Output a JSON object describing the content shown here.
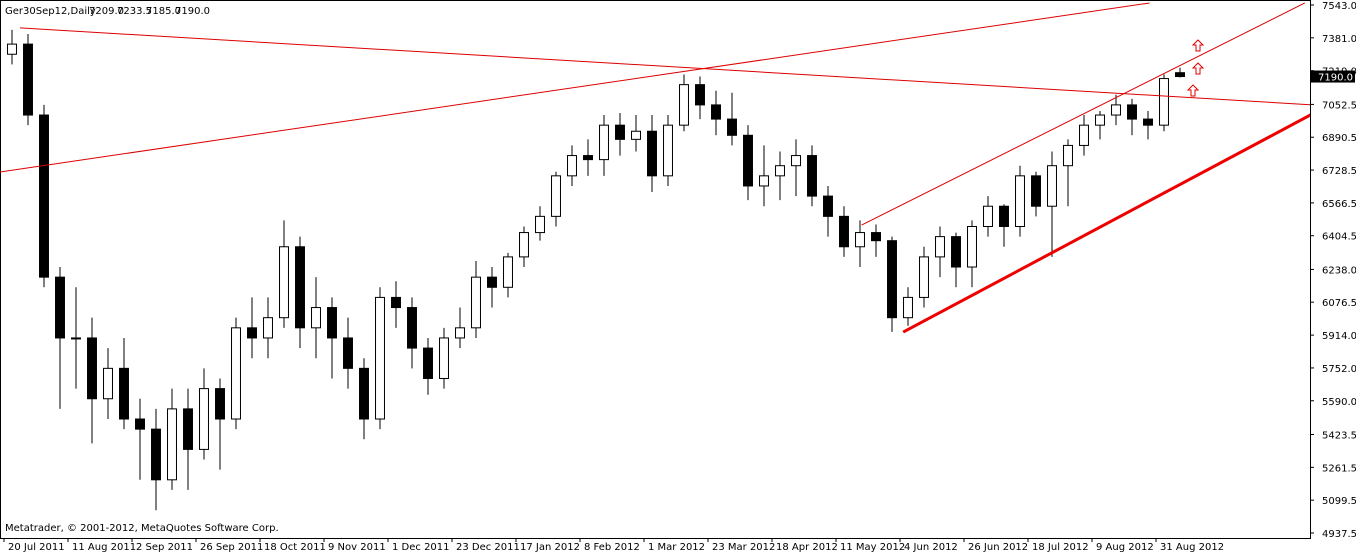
{
  "chart_data": {
    "type": "candlestick",
    "header": {
      "symbol": "Ger30Sep12,Daily",
      "ohlc": [
        "7209.0",
        "7233.5",
        "7185.0",
        "7190.0"
      ]
    },
    "footer": "Metatrader, © 2001-2012, MetaQuotes Software Corp.",
    "categories": [
      "20 Jul 2011",
      null,
      null,
      null,
      "11 Aug 2011",
      null,
      null,
      null,
      "2 Sep 2011",
      null,
      null,
      null,
      "26 Sep 2011",
      null,
      null,
      null,
      "18 Oct 2011",
      null,
      null,
      null,
      "9 Nov 2011",
      null,
      null,
      null,
      "1 Dec 2011",
      null,
      null,
      null,
      "23 Dec 2011",
      null,
      null,
      null,
      "17 Jan 2012",
      null,
      null,
      null,
      "8 Feb 2012",
      null,
      null,
      null,
      "1 Mar 2012",
      null,
      null,
      null,
      "23 Mar 2012",
      null,
      null,
      null,
      "18 Apr 2012",
      null,
      null,
      null,
      "11 May 2012",
      null,
      null,
      null,
      "4 Jun 2012",
      null,
      null,
      null,
      "26 Jun 2012",
      null,
      null,
      null,
      "18 Jul 2012",
      null,
      null,
      null,
      "9 Aug 2012",
      null,
      null,
      null,
      "31 Aug 2012",
      null
    ],
    "open": [
      7300,
      7350,
      7000,
      6200,
      5900,
      5900,
      5600,
      5750,
      5500,
      5450,
      5200,
      5550,
      5350,
      5650,
      5500,
      5950,
      5900,
      6000,
      6350,
      5950,
      6050,
      5900,
      5750,
      5500,
      6100,
      6050,
      5850,
      5700,
      5900,
      5950,
      6200,
      6150,
      6300,
      6420,
      6500,
      6700,
      6800,
      6780,
      6950,
      6880,
      6920,
      6700,
      6950,
      7150,
      7050,
      6980,
      6900,
      6650,
      6700,
      6750,
      6800,
      6600,
      6500,
      6350,
      6420,
      6380,
      6000,
      6100,
      6300,
      6400,
      6250,
      6450,
      6550,
      6450,
      6700,
      6550,
      6750,
      6850,
      6950,
      7000,
      7050,
      6980,
      6950,
      7209
    ],
    "high": [
      7420,
      7400,
      7050,
      6250,
      6150,
      6000,
      5850,
      5900,
      5600,
      5550,
      5650,
      5650,
      5750,
      5700,
      6000,
      6100,
      6100,
      6480,
      6400,
      6200,
      6100,
      6000,
      5800,
      6150,
      6180,
      6100,
      5900,
      5950,
      6050,
      6280,
      6250,
      6320,
      6450,
      6550,
      6720,
      6850,
      6880,
      7000,
      7010,
      7000,
      7000,
      7000,
      7200,
      7190,
      7120,
      7110,
      6950,
      6850,
      6820,
      6880,
      6850,
      6650,
      6550,
      6480,
      6460,
      6400,
      6150,
      6350,
      6450,
      6420,
      6480,
      6600,
      6560,
      6750,
      6720,
      6820,
      6880,
      7000,
      7020,
      7100,
      7080,
      7020,
      7200,
      7233.5
    ],
    "low": [
      7250,
      6950,
      6150,
      5550,
      5650,
      5380,
      5500,
      5450,
      5200,
      5050,
      5150,
      5150,
      5300,
      5250,
      5450,
      5800,
      5800,
      5950,
      5850,
      5800,
      5700,
      5650,
      5400,
      5450,
      5950,
      5750,
      5620,
      5650,
      5850,
      5900,
      6050,
      6100,
      6250,
      6380,
      6450,
      6650,
      6700,
      6700,
      6800,
      6820,
      6620,
      6650,
      6920,
      6980,
      6900,
      6850,
      6580,
      6550,
      6580,
      6600,
      6550,
      6400,
      6300,
      6250,
      6300,
      5930,
      5960,
      6050,
      6200,
      6150,
      6150,
      6400,
      6350,
      6400,
      6500,
      6300,
      6550,
      6800,
      6880,
      6950,
      6900,
      6880,
      6920,
      7185
    ],
    "close": [
      7350,
      7000,
      6200,
      5900,
      5900,
      5600,
      5750,
      5500,
      5450,
      5200,
      5550,
      5350,
      5650,
      5500,
      5950,
      5900,
      6000,
      6350,
      5950,
      6050,
      5900,
      5750,
      5500,
      6100,
      6050,
      5850,
      5700,
      5900,
      5950,
      6200,
      6150,
      6300,
      6420,
      6500,
      6700,
      6800,
      6780,
      6950,
      6880,
      6920,
      6700,
      6950,
      7150,
      7050,
      6980,
      6900,
      6650,
      6700,
      6750,
      6800,
      6600,
      6500,
      6350,
      6420,
      6380,
      6000,
      6100,
      6300,
      6400,
      6250,
      6450,
      6550,
      6450,
      6700,
      6550,
      6750,
      6850,
      6950,
      7000,
      7050,
      6980,
      6950,
      7180,
      7190
    ],
    "up_color": "#ffffff",
    "down_color": "#000000",
    "wick_color": "#000000",
    "xlim": [
      -0.75,
      81.125
    ],
    "ylim": [
      4937.5,
      7543
    ],
    "yticks": [
      {
        "value": 7543,
        "label": "7543.0"
      },
      {
        "value": 7381,
        "label": "7381.0"
      },
      {
        "value": 7219,
        "label": "7219.0"
      },
      {
        "value": 7052.5,
        "label": "7052.5"
      },
      {
        "value": 6890.5,
        "label": "6890.5"
      },
      {
        "value": 6728.5,
        "label": "6728.5"
      },
      {
        "value": 6566.5,
        "label": "6566.5"
      },
      {
        "value": 6404.5,
        "label": "6404.5"
      },
      {
        "value": 6238,
        "label": "6238.0"
      },
      {
        "value": 6076.5,
        "label": "6076.5"
      },
      {
        "value": 5914,
        "label": "5914.0"
      },
      {
        "value": 5752,
        "label": "5752.0"
      },
      {
        "value": 5590,
        "label": "5590.0"
      },
      {
        "value": 5423.5,
        "label": "5423.5"
      },
      {
        "value": 5261.5,
        "label": "5261.5"
      },
      {
        "value": 5099.5,
        "label": "5099.5"
      },
      {
        "value": 4937.5,
        "label": "4937.5"
      }
    ],
    "last_price": {
      "value": 7190,
      "label": "7190.0"
    },
    "trendlines": [
      {
        "x": [
          0.5,
          81.5
        ],
        "y": [
          7430,
          7049
        ],
        "color": "#dd0000",
        "width": 1
      },
      {
        "x": [
          -0.75,
          71.1
        ],
        "y": [
          6719,
          7553
        ],
        "color": "#dd0000",
        "width": 1
      },
      {
        "x": [
          53.1,
          80.8
        ],
        "y": [
          6457,
          7553
        ],
        "color": "#dd0000",
        "width": 1
      },
      {
        "x": [
          55.7,
          81.5
        ],
        "y": [
          5929,
          7015
        ],
        "color": "#ee0000",
        "width": 3
      }
    ]
  }
}
